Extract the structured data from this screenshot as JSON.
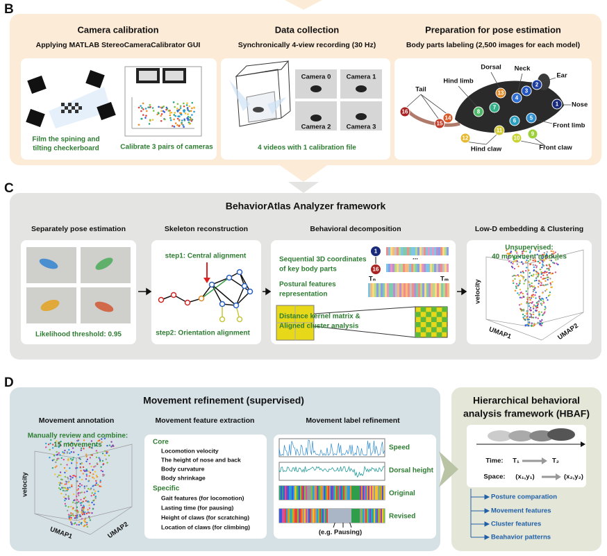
{
  "panel_b": {
    "label": "B",
    "calibration": {
      "title": "Camera calibration",
      "subtitle": "Applying MATLAB StereoCameraCalibrator GUI",
      "caption_left": [
        "Film the spining and",
        "tilting checkerboard"
      ],
      "caption_right": "Calibrate 3 pairs of cameras"
    },
    "collection": {
      "title": "Data collection",
      "subtitle": "Synchronically 4-view recording (30 Hz)",
      "cameras": [
        "Camera 0",
        "Camera 1",
        "Camera 2",
        "Camera 3"
      ],
      "caption": "4 videos with 1 calibration file"
    },
    "labeling": {
      "title": "Preparation for pose estimation",
      "subtitle": "Body parts labeling (2,500 images for each model)",
      "parts": [
        "Dorsal",
        "Neck",
        "Ear",
        "Hind limb",
        "Tail",
        "Nose",
        "Front limb",
        "Hind claw",
        "Front claw"
      ],
      "keypoints": [
        1,
        2,
        3,
        4,
        5,
        6,
        7,
        8,
        9,
        10,
        11,
        12,
        13,
        14,
        15,
        16
      ]
    }
  },
  "panel_c": {
    "label": "C",
    "title": "BehaviorAtlas Analyzer framework",
    "pose": {
      "title": "Separately pose estimation",
      "caption": "Likelihood threshold: 0.95"
    },
    "skeleton": {
      "title": "Skeleton reconstruction",
      "step1": "step1: Central alignment",
      "step2": "step2: Orientation alignment"
    },
    "decomposition": {
      "title": "Behavioral decomposition",
      "steps": [
        [
          "Sequential 3D coordinates",
          "of key body parts"
        ],
        [
          "Postural features",
          "representation"
        ],
        [
          "Distance kernel matrix &",
          "Aligned cluster analysis"
        ]
      ],
      "first_point": 1,
      "last_point": 16,
      "ellipsis": "...",
      "t_start": "Tₙ",
      "t_end": "Tₘ"
    },
    "embedding": {
      "title": "Low-D embedding & Clustering",
      "note": [
        "Unsupervised:",
        "40 movement modules"
      ],
      "axes": [
        "velocity",
        "UMAP1",
        "UMAP2"
      ]
    }
  },
  "panel_d": {
    "label": "D",
    "title": "Movement refinement (supervised)",
    "annotation": {
      "title": "Movement annotation",
      "note": [
        "Manually review and combine:",
        "15 movements"
      ],
      "axes": [
        "velocity",
        "UMAP1",
        "UMAP2"
      ]
    },
    "features": {
      "title": "Movement feature extraction",
      "core_title": "Core",
      "core": [
        "Locomotion velocity",
        "The height of nose and back",
        "Body curvature",
        "Body shrinkage"
      ],
      "specific_title": "Specific",
      "specific": [
        "Gait features (for locomotion)",
        "Lasting time (for pausing)",
        "Height of claws (for scratching)",
        "Location of claws (for climbing)"
      ]
    },
    "label_refinement": {
      "title": "Movement label refinement",
      "tracks": [
        "Speed",
        "Dorsal height",
        "Original",
        "Revised"
      ],
      "example": "(e.g. Pausing)"
    }
  },
  "hbaf": {
    "title": [
      "Hierarchical behavioral",
      "analysis framework (HBAF)"
    ],
    "time_label": "Time:",
    "t1": "T₁",
    "t2": "T₂",
    "space_label": "Space:",
    "p1": "(x₁,y₁)",
    "p2": "(x₂,y₂)",
    "levels": [
      "Posture comparation",
      "Movement features",
      "Cluster features",
      "Beahavior patterns"
    ]
  }
}
